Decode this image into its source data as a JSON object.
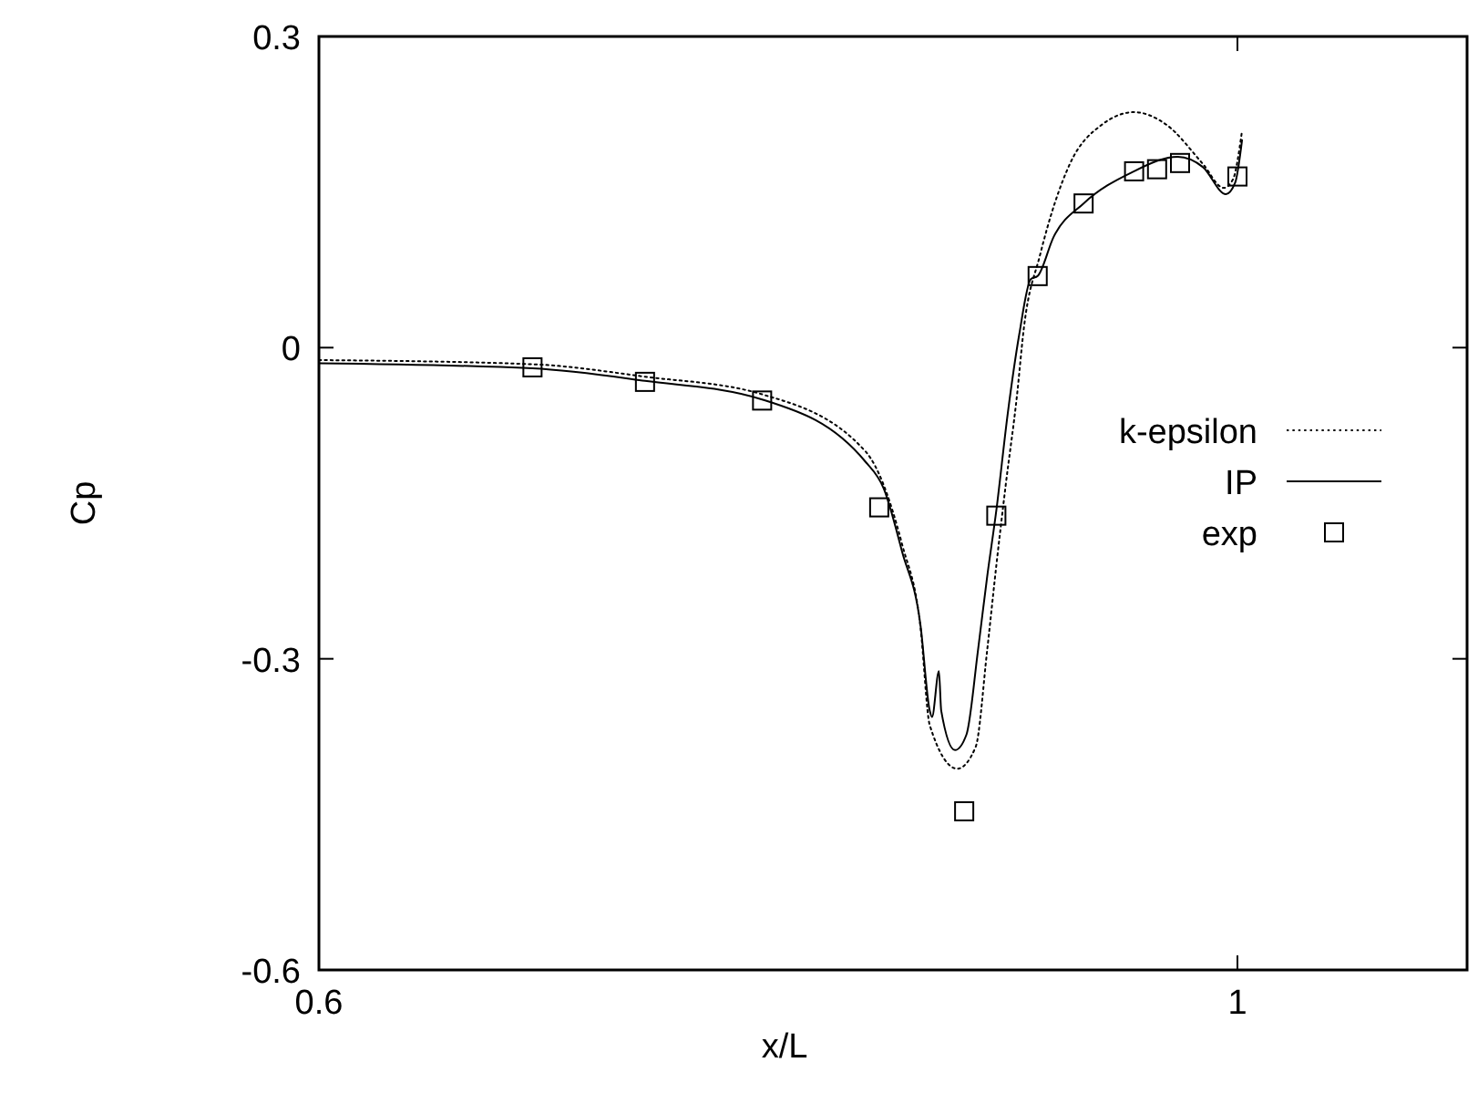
{
  "chart_data": {
    "type": "line",
    "xlabel": "x/L",
    "ylabel": "Cp",
    "xlim": [
      0.6,
      1.1
    ],
    "ylim": [
      -0.6,
      0.3
    ],
    "xticks": [
      0.6,
      1
    ],
    "yticks": [
      -0.6,
      -0.3,
      0,
      0.3
    ],
    "grid": false,
    "legend": "right",
    "series": [
      {
        "name": "k-epsilon",
        "color": "#000000",
        "line_style": "dotted",
        "marker": "none",
        "x": [
          0.6,
          0.693,
          0.742,
          0.793,
          0.838,
          0.854,
          0.862,
          0.866,
          0.878,
          0.886,
          0.891,
          0.895,
          0.899,
          0.904,
          0.907,
          0.914,
          0.927,
          0.941,
          0.955,
          0.969,
          0.985,
          0.994,
          0.998,
          1.002
        ],
        "values": [
          -0.012,
          -0.016,
          -0.028,
          -0.045,
          -0.1,
          -0.19,
          -0.27,
          -0.364,
          -0.406,
          -0.385,
          -0.292,
          -0.21,
          -0.134,
          -0.046,
          0.019,
          0.089,
          0.177,
          0.215,
          0.227,
          0.215,
          0.177,
          0.154,
          0.162,
          0.209
        ]
      },
      {
        "name": "IP",
        "color": "#000000",
        "line_style": "solid",
        "marker": "none",
        "x": [
          0.6,
          0.693,
          0.742,
          0.793,
          0.838,
          0.846,
          0.854,
          0.862,
          0.866,
          0.867,
          0.87,
          0.871,
          0.877,
          0.882,
          0.887,
          0.891,
          0.895,
          0.9,
          0.905,
          0.91,
          0.913,
          0.92,
          0.933,
          0.954,
          0.974,
          0.985,
          0.995,
          0.999,
          1.002
        ],
        "values": [
          -0.015,
          -0.02,
          -0.032,
          -0.05,
          -0.11,
          -0.136,
          -0.197,
          -0.268,
          -0.35,
          -0.356,
          -0.312,
          -0.35,
          -0.388,
          -0.373,
          -0.292,
          -0.221,
          -0.157,
          -0.063,
          0.013,
          0.066,
          0.069,
          0.107,
          0.139,
          0.169,
          0.184,
          0.174,
          0.148,
          0.159,
          0.2
        ]
      },
      {
        "name": "exp",
        "type": "scatter",
        "color": "#000000",
        "marker": "square",
        "x": [
          0.693,
          0.742,
          0.793,
          0.844,
          0.881,
          0.895,
          0.913,
          0.933,
          0.955,
          0.965,
          0.975,
          1.0
        ],
        "values": [
          -0.019,
          -0.033,
          -0.051,
          -0.154,
          -0.447,
          -0.162,
          0.069,
          0.139,
          0.17,
          0.172,
          0.178,
          0.165
        ]
      }
    ]
  }
}
